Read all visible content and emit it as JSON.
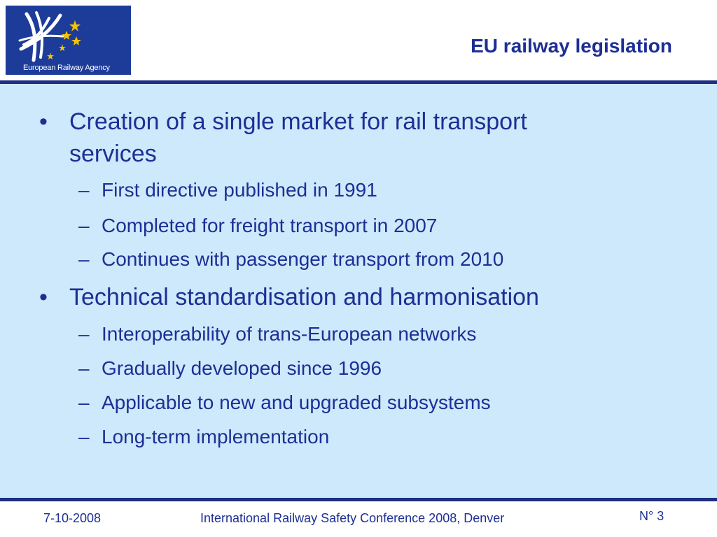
{
  "header": {
    "title": "EU railway legislation",
    "logo": {
      "text": "European Railway Agency",
      "star_color": "#f5c400",
      "background": "#1d3c9a"
    }
  },
  "content": {
    "bullets": [
      {
        "text": "Creation of a single market for rail transport services",
        "sub": [
          "First directive published in 1991",
          "Completed for freight transport in 2007",
          "Continues with passenger transport from 2010"
        ]
      },
      {
        "text": "Technical standardisation and harmonisation",
        "sub": [
          "Interoperability of trans-European networks",
          "Gradually developed since 1996",
          "Applicable to new and upgraded subsystems",
          "Long-term implementation"
        ]
      }
    ]
  },
  "footer": {
    "date": "7-10-2008",
    "conference": "International Railway Safety Conference 2008, Denver",
    "page": "N° 3"
  },
  "colors": {
    "text": "#1d2f95",
    "content_bg": "#cde9fb",
    "rule": "#1c2f80"
  }
}
